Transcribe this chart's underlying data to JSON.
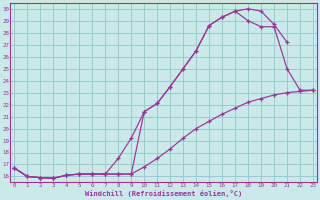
{
  "xlabel": "Windchill (Refroidissement éolien,°C)",
  "xlim": [
    -0.3,
    23.3
  ],
  "ylim": [
    15.5,
    30.5
  ],
  "xticks": [
    0,
    1,
    2,
    3,
    4,
    5,
    6,
    7,
    8,
    9,
    10,
    11,
    12,
    13,
    14,
    15,
    16,
    17,
    18,
    19,
    20,
    21,
    22,
    23
  ],
  "yticks": [
    16,
    17,
    18,
    19,
    20,
    21,
    22,
    23,
    24,
    25,
    26,
    27,
    28,
    29,
    30
  ],
  "bg_color": "#cce9e9",
  "grid_color": "#99cccc",
  "line_color": "#993399",
  "curve1_x": [
    0,
    1,
    2,
    3,
    4,
    5,
    6,
    7,
    8,
    9,
    10,
    11,
    12,
    13,
    14,
    15,
    16,
    17,
    18,
    19,
    20,
    21
  ],
  "curve1_y": [
    16.7,
    16.0,
    15.9,
    15.85,
    16.1,
    16.2,
    16.2,
    16.2,
    17.5,
    19.2,
    21.4,
    22.1,
    23.5,
    25.0,
    26.5,
    28.6,
    29.3,
    29.8,
    30.0,
    29.8,
    28.7,
    27.2
  ],
  "curve2_x": [
    0,
    1,
    2,
    3,
    4,
    5,
    6,
    7,
    8,
    9,
    10,
    11,
    12,
    13,
    14,
    15,
    16,
    17,
    18,
    19,
    20,
    21,
    22,
    23
  ],
  "curve2_y": [
    16.7,
    16.0,
    15.9,
    15.85,
    16.1,
    16.2,
    16.2,
    16.2,
    16.2,
    16.2,
    21.4,
    22.1,
    23.5,
    25.0,
    26.5,
    28.6,
    29.3,
    29.8,
    29.0,
    28.5,
    28.5,
    25.0,
    23.2,
    23.2
  ],
  "curve3_x": [
    0,
    1,
    2,
    3,
    4,
    5,
    6,
    7,
    8,
    9,
    10,
    11,
    12,
    13,
    14,
    15,
    16,
    17,
    18,
    19,
    20,
    21,
    22,
    23
  ],
  "curve3_y": [
    16.7,
    16.0,
    15.9,
    15.85,
    16.1,
    16.2,
    16.2,
    16.2,
    16.2,
    16.2,
    16.8,
    17.5,
    18.3,
    19.2,
    20.0,
    20.6,
    21.2,
    21.7,
    22.2,
    22.5,
    22.8,
    23.0,
    23.1,
    23.2
  ]
}
